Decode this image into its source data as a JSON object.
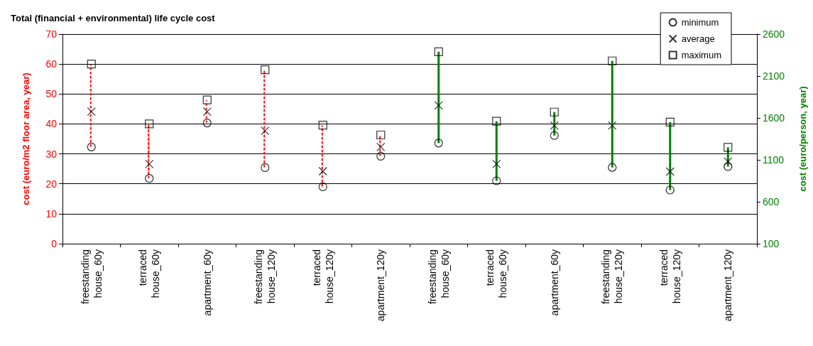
{
  "chart_data": {
    "type": "scatter",
    "title": "Total (financial + environmental) life cycle cost",
    "ylabel": "cost (euro/m2 floor area, year)",
    "y2label": "cost (euro/person, year)",
    "categories": [
      "freestanding house_60y",
      "terraced house_60y",
      "apartment_60y",
      "freestanding house_120y",
      "terraced house_120y",
      "apartment_120y",
      "freestanding house_60y",
      "terraced house_60y",
      "apartment_60y",
      "freestanding house_120y",
      "terraced house_120y",
      "apartment_120y"
    ],
    "ylim": [
      0,
      70
    ],
    "yticks": [
      0,
      10,
      20,
      30,
      40,
      50,
      60,
      70
    ],
    "y2lim": [
      100,
      2600
    ],
    "y2ticks": [
      100,
      600,
      1100,
      1600,
      2100,
      2600
    ],
    "grid": "y",
    "legend": "top right",
    "series": [
      {
        "type": "bar",
        "color": "#ff0000",
        "line_style": "dotted",
        "base": [
          32.3,
          21.8,
          40.3,
          25.4,
          19,
          29.2,
          null,
          null,
          null,
          null,
          null,
          null
        ],
        "values": [
          27.7,
          18.2,
          7.7,
          32.7,
          20.6,
          7.1,
          null,
          null,
          null,
          null,
          null,
          null
        ]
      },
      {
        "type": "bar",
        "axis": "y2",
        "color": "#008000",
        "line_style": "solid",
        "base": [
          null,
          null,
          null,
          null,
          null,
          null,
          1300,
          850,
          1390,
          1010,
          740,
          1020
        ],
        "values": [
          null,
          null,
          null,
          null,
          null,
          null,
          1090,
          710,
          280,
          1270,
          810,
          230
        ]
      },
      {
        "name": "minimum",
        "marker": "circle",
        "color": "#000000",
        "values": [
          32.3,
          21.8,
          40.3,
          25.4,
          19,
          29.2,
          null,
          null,
          null,
          null,
          null,
          null
        ]
      },
      {
        "name": "average",
        "marker": "cross",
        "color": "#000000",
        "values": [
          44.1,
          26.6,
          44.1,
          37.7,
          24.2,
          32.3,
          null,
          null,
          null,
          null,
          null,
          null
        ]
      },
      {
        "name": "maximum",
        "marker": "square",
        "color": "#000000",
        "values": [
          60,
          40,
          48,
          58.1,
          39.6,
          36.3,
          null,
          null,
          null,
          null,
          null,
          null
        ]
      },
      {
        "axis": "y2",
        "marker": "circle",
        "color": "#000000",
        "values": [
          null,
          null,
          null,
          null,
          null,
          null,
          1300,
          850,
          1390,
          1010,
          740,
          1020
        ]
      },
      {
        "axis": "y2",
        "marker": "cross",
        "color": "#000000",
        "values": [
          null,
          null,
          null,
          null,
          null,
          null,
          1750,
          1050,
          1510,
          1510,
          960,
          1080
        ]
      },
      {
        "axis": "y2",
        "marker": "square",
        "color": "#000000",
        "values": [
          null,
          null,
          null,
          null,
          null,
          null,
          2390,
          1560,
          1670,
          2280,
          1550,
          1250
        ]
      }
    ]
  }
}
